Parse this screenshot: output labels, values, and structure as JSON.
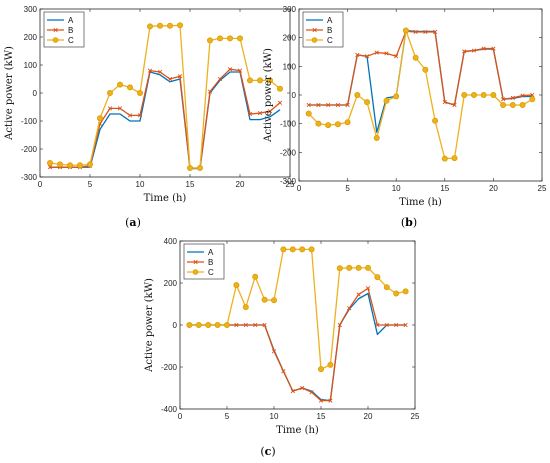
{
  "colors": {
    "A": "#0072BD",
    "B": "#D95319",
    "C": "#EDB120"
  },
  "chart_data": [
    {
      "type": "line",
      "panel_label": {
        "open": "(",
        "letter": "a",
        "close": ")"
      },
      "xlabel": "Time (h)",
      "ylabel": "Active power (kW)",
      "xlim": [
        0,
        25
      ],
      "ylim": [
        -300,
        300
      ],
      "xticks": [
        0,
        5,
        10,
        15,
        20,
        25
      ],
      "yticks": [
        -300,
        -200,
        -100,
        0,
        100,
        200,
        300
      ],
      "legend_position": "top-left",
      "x": [
        1,
        2,
        3,
        4,
        5,
        6,
        7,
        8,
        9,
        10,
        11,
        12,
        13,
        14,
        15,
        16,
        17,
        18,
        19,
        20,
        21,
        22,
        23,
        24
      ],
      "series": [
        {
          "name": "A",
          "marker": "none",
          "values": [
            -265,
            -265,
            -265,
            -265,
            -265,
            -130,
            -75,
            -75,
            -100,
            -100,
            75,
            65,
            40,
            50,
            -270,
            -270,
            0,
            45,
            75,
            75,
            -95,
            -95,
            -85,
            -60
          ]
        },
        {
          "name": "B",
          "marker": "x",
          "values": [
            -265,
            -265,
            -265,
            -265,
            -260,
            -110,
            -55,
            -55,
            -80,
            -80,
            80,
            75,
            50,
            60,
            -268,
            -268,
            5,
            50,
            85,
            80,
            -75,
            -72,
            -65,
            -35
          ]
        },
        {
          "name": "C",
          "marker": "o",
          "values": [
            -250,
            -255,
            -258,
            -258,
            -255,
            -90,
            0,
            30,
            20,
            0,
            238,
            240,
            240,
            242,
            -268,
            -268,
            188,
            195,
            195,
            195,
            45,
            45,
            45,
            15
          ]
        }
      ]
    },
    {
      "type": "line",
      "panel_label": {
        "open": "(",
        "letter": "b",
        "close": ")"
      },
      "xlabel": "Time (h)",
      "ylabel": "Active power (kW)",
      "xlim": [
        0,
        25
      ],
      "ylim": [
        -300,
        300
      ],
      "xticks": [
        0,
        5,
        10,
        15,
        20,
        25
      ],
      "yticks": [
        -300,
        -200,
        -100,
        0,
        100,
        200,
        300
      ],
      "legend_position": "top-left",
      "x": [
        1,
        2,
        3,
        4,
        5,
        6,
        7,
        8,
        9,
        10,
        11,
        12,
        13,
        14,
        15,
        16,
        17,
        18,
        19,
        20,
        21,
        22,
        23,
        24
      ],
      "series": [
        {
          "name": "A",
          "marker": "none",
          "values": [
            -35,
            -35,
            -35,
            -35,
            -35,
            140,
            135,
            -130,
            -10,
            -5,
            225,
            222,
            222,
            222,
            -25,
            -35,
            152,
            155,
            160,
            160,
            -15,
            -12,
            -5,
            -5
          ]
        },
        {
          "name": "B",
          "marker": "x",
          "values": [
            -35,
            -35,
            -35,
            -35,
            -35,
            140,
            135,
            148,
            145,
            135,
            222,
            220,
            220,
            220,
            -25,
            -35,
            152,
            155,
            162,
            162,
            -15,
            -10,
            -2,
            0
          ]
        },
        {
          "name": "C",
          "marker": "o",
          "values": [
            -65,
            -100,
            -105,
            -102,
            -95,
            0,
            -25,
            -150,
            -20,
            -5,
            225,
            130,
            88,
            -90,
            -222,
            -220,
            0,
            0,
            0,
            0,
            -35,
            -35,
            -35,
            -15
          ]
        }
      ]
    },
    {
      "type": "line",
      "panel_label": {
        "open": "(",
        "letter": "c",
        "close": ")"
      },
      "xlabel": "Time (h)",
      "ylabel": "Active power (kW)",
      "xlim": [
        0,
        25
      ],
      "ylim": [
        -400,
        400
      ],
      "xticks": [
        0,
        5,
        10,
        15,
        20,
        25
      ],
      "yticks": [
        -400,
        -200,
        0,
        200,
        400
      ],
      "legend_position": "top-left",
      "x": [
        1,
        2,
        3,
        4,
        5,
        6,
        7,
        8,
        9,
        10,
        11,
        12,
        13,
        14,
        15,
        16,
        17,
        18,
        19,
        20,
        21,
        22,
        23,
        24
      ],
      "series": [
        {
          "name": "A",
          "marker": "none",
          "values": [
            0,
            0,
            0,
            0,
            0,
            0,
            0,
            0,
            0,
            -120,
            -220,
            -315,
            -300,
            -315,
            -355,
            -360,
            0,
            75,
            125,
            150,
            -45,
            0,
            0,
            0
          ]
        },
        {
          "name": "B",
          "marker": "x",
          "values": [
            0,
            0,
            0,
            0,
            0,
            0,
            0,
            0,
            0,
            -125,
            -220,
            -315,
            -300,
            -320,
            -360,
            -360,
            0,
            80,
            145,
            175,
            0,
            0,
            0,
            0
          ]
        },
        {
          "name": "C",
          "marker": "o",
          "values": [
            0,
            0,
            0,
            0,
            0,
            190,
            85,
            230,
            120,
            118,
            360,
            360,
            360,
            360,
            -210,
            -190,
            270,
            272,
            272,
            272,
            228,
            180,
            150,
            160
          ]
        }
      ]
    }
  ]
}
